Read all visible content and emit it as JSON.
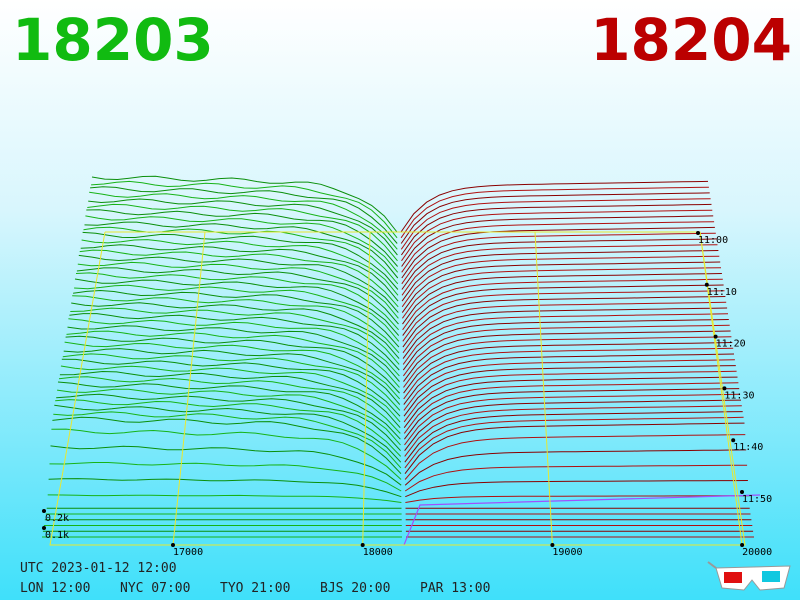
{
  "header": {
    "bid": "18203",
    "ask": "18204"
  },
  "price_axis": {
    "ticks": [
      "17000",
      "18000",
      "19000",
      "20000"
    ]
  },
  "time_axis": {
    "ticks": [
      "11:00",
      "11:10",
      "11:20",
      "11:30",
      "11:40",
      "11:50"
    ]
  },
  "depth_axis": {
    "ticks": [
      "0.2k",
      "0.1k"
    ]
  },
  "footer": {
    "utc": "UTC 2023-01-12 12:00",
    "cities": [
      "LON 12:00",
      "NYC 07:00",
      "TYO 21:00",
      "BJS 20:00",
      "PAR 13:00"
    ]
  }
}
